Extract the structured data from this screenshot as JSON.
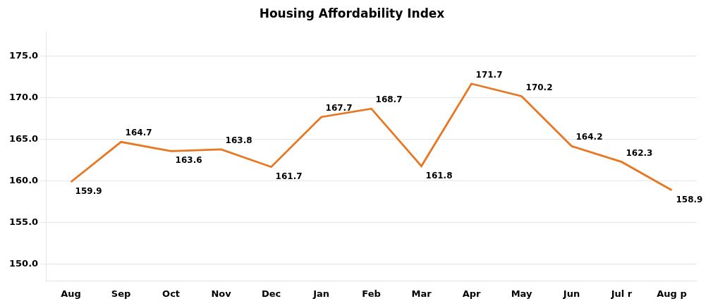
{
  "chart_data": {
    "type": "line",
    "title": "Housing Affordability Index",
    "categories": [
      "Aug",
      "Sep",
      "Oct",
      "Nov",
      "Dec",
      "Jan",
      "Feb",
      "Mar",
      "Apr",
      "May",
      "Jun",
      "Jul r",
      "Aug p"
    ],
    "values": [
      159.9,
      164.7,
      163.6,
      163.8,
      161.7,
      167.7,
      168.7,
      161.8,
      171.7,
      170.2,
      164.2,
      162.3,
      158.9
    ],
    "color": "#E87722",
    "ylim": [
      148.0,
      178.0
    ],
    "yticks": [
      {
        "value": 150,
        "label": "150.0"
      },
      {
        "value": 155,
        "label": "155.0"
      },
      {
        "value": 160,
        "label": "160.0"
      },
      {
        "value": 165,
        "label": "165.0"
      },
      {
        "value": 170,
        "label": "170.0"
      },
      {
        "value": 175,
        "label": "175.0"
      }
    ],
    "grid": true,
    "data_labels": true
  }
}
